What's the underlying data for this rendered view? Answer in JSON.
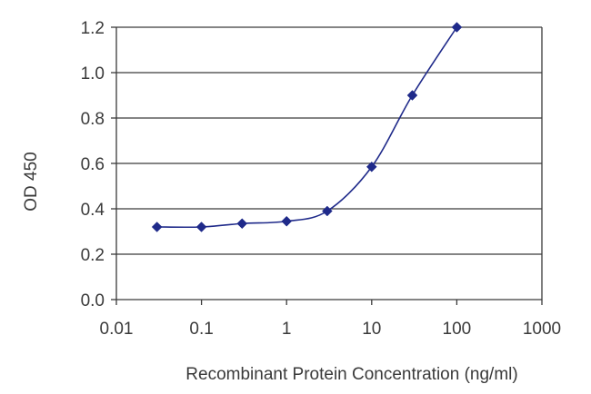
{
  "chart_data": {
    "type": "line",
    "title": "",
    "xlabel": "Recombinant Protein Concentration (ng/ml)",
    "ylabel": "OD 450",
    "x_scale": "log",
    "xlim": [
      0.01,
      1000
    ],
    "ylim": [
      0.0,
      1.2
    ],
    "x_ticks": [
      0.01,
      0.1,
      1,
      10,
      100,
      1000
    ],
    "x_tick_labels": [
      "0.01",
      "0.1",
      "1",
      "10",
      "100",
      "1000"
    ],
    "y_ticks": [
      0.0,
      0.2,
      0.4,
      0.6,
      0.8,
      1.0,
      1.2
    ],
    "y_tick_labels": [
      "0.0",
      "0.2",
      "0.4",
      "0.6",
      "0.8",
      "1.0",
      "1.2"
    ],
    "grid": "horizontal",
    "legend": "none",
    "series": [
      {
        "x": [
          0.03,
          0.1,
          0.3,
          1,
          3,
          10,
          30,
          100
        ],
        "y": [
          0.32,
          0.32,
          0.335,
          0.345,
          0.39,
          0.585,
          0.9,
          1.2
        ],
        "color": "#1f2a8a",
        "marker": "diamond"
      }
    ]
  }
}
